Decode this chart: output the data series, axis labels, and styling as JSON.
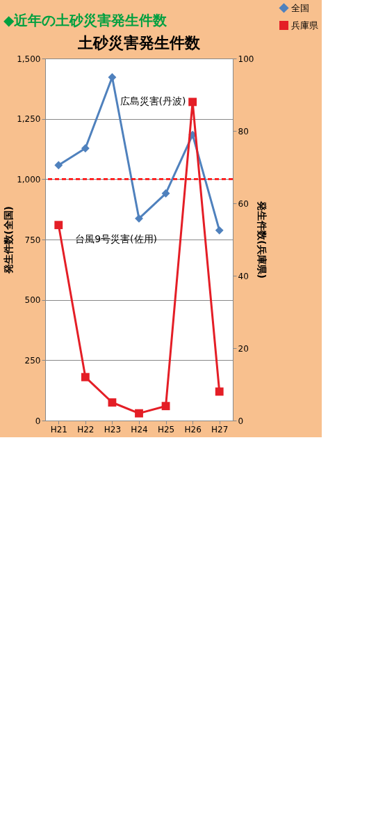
{
  "chart_data": {
    "type": "line",
    "title": "土砂災害発生件数",
    "categories": [
      "H21",
      "H22",
      "H23",
      "H24",
      "H25",
      "H26",
      "H27"
    ],
    "series": [
      {
        "name": "全国",
        "color": "#4f81bd",
        "marker": "diamond",
        "values": [
          1058,
          1128,
          1422,
          837,
          941,
          1184,
          788
        ]
      },
      {
        "name": "兵庫県",
        "color": "#e41e26",
        "marker": "square",
        "axis": "y2",
        "values": [
          54,
          12,
          5,
          2,
          4,
          88,
          8
        ]
      }
    ],
    "ylabel": "発生件数(全国)",
    "y2label": "発生件数(兵庫県)",
    "ylim": [
      0,
      1500
    ],
    "yticks": [
      {
        "value": 0,
        "label": "0"
      },
      {
        "value": 250,
        "label": "250"
      },
      {
        "value": 500,
        "label": "500"
      },
      {
        "value": 750,
        "label": "750"
      },
      {
        "value": 1000,
        "label": "1,000"
      },
      {
        "value": 1250,
        "label": "1,250"
      },
      {
        "value": 1500,
        "label": "1,500"
      }
    ],
    "y2lim": [
      0,
      100
    ],
    "y2ticks": [
      0,
      20,
      40,
      60,
      80,
      100
    ],
    "ref_lines": [
      {
        "axis": "y",
        "value": 1000,
        "color": "#ff0000",
        "line_style": "dashed"
      }
    ],
    "annotations": [
      "◆近年の土砂災害発生件数",
      "台風9号災害(佐用)",
      "広島災害(丹波)"
    ],
    "grid": "y",
    "legend": "right",
    "line_style": "solid"
  }
}
